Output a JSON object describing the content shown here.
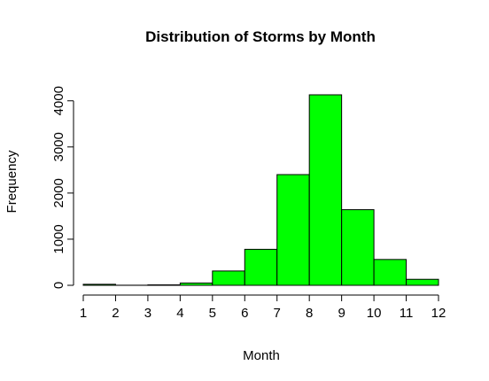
{
  "chart_data": {
    "type": "bar",
    "title": "Distribution of Storms by Month",
    "xlabel": "Month",
    "ylabel": "Frequency",
    "bin_edges": [
      1,
      2,
      3,
      4,
      5,
      6,
      7,
      8,
      9,
      10,
      11,
      12
    ],
    "values": [
      22,
      2,
      10,
      50,
      310,
      780,
      2400,
      4130,
      1640,
      560,
      130
    ],
    "x_ticks": [
      "1",
      "2",
      "3",
      "4",
      "5",
      "6",
      "7",
      "8",
      "9",
      "10",
      "11",
      "12"
    ],
    "y_ticks": [
      "0",
      "1000",
      "2000",
      "3000",
      "4000"
    ],
    "xlim": [
      1,
      12
    ],
    "ylim": [
      0,
      4130
    ],
    "bar_color": "#00ff00",
    "edge_color": "#000000",
    "grid": false,
    "legend": "none"
  }
}
